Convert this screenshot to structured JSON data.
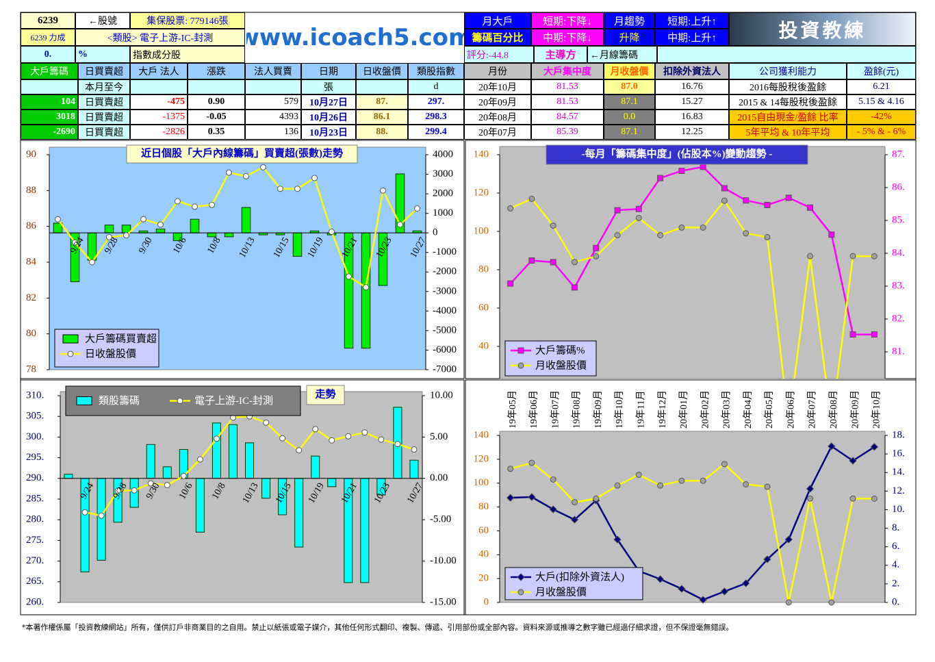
{
  "header": {
    "stock_code": "6239",
    "code_label": "←股號",
    "custody": "集保股票: 779146張",
    "stock_name": "6239 力成",
    "sector": "<類股> 電子上游-IC-封測",
    "pct_value": "0.",
    "pct_unit": "%",
    "index_member": "指數成分股",
    "site": "www.icoach5.com",
    "monthly_big": [
      "月大戶",
      "籌碼百分比"
    ],
    "monthly_big_trend": [
      "短期:下降↓",
      "中期:下降↓"
    ],
    "monthly_trend": [
      "月趨勢",
      "升降"
    ],
    "monthly_trend_value": [
      "短期:上升↑",
      "中期:上升↑"
    ],
    "logo": "投資教練",
    "score": "評分:-44.8",
    "leader": "主導方",
    "leader_value": "←月線籌碼"
  },
  "daily_table": {
    "header": [
      "大戶籌碼",
      "日買賣超",
      "大戶 法人",
      "漲跌",
      "法人買賣",
      "日期",
      "日收盤價",
      "類股指數"
    ],
    "rows": [
      [
        null,
        "本月至今",
        null,
        null,
        null,
        "張",
        null,
        "d"
      ],
      [
        "104",
        "日買賣超",
        "-475",
        "0.90",
        "579",
        "10月27日",
        "87.",
        "297."
      ],
      [
        "3018",
        "日買賣超",
        "-1375",
        "-0.05",
        "4393",
        "10月26日",
        "86.1",
        "298.3"
      ],
      [
        "-2690",
        "日買賣超",
        "-2826",
        "0.35",
        "136",
        "10月23日",
        "88.",
        "299.4"
      ]
    ]
  },
  "monthly_table": {
    "header": [
      "月份",
      "大戶集中度",
      "月收盤價",
      "扣除外資法人"
    ],
    "rows": [
      [
        "20年10月",
        "81.53",
        "87.0",
        "16.76"
      ],
      [
        "20年09月",
        "81.53",
        "87.1",
        "15.27"
      ],
      [
        "20年08月",
        "84.57",
        "0.0",
        "16.83"
      ],
      [
        "20年07月",
        "85.39",
        "87.1",
        "12.25"
      ]
    ]
  },
  "profit_table": {
    "header": [
      "公司獲利能力",
      "盈餘(元)"
    ],
    "rows": [
      [
        "2016每股稅後盈餘",
        "6.21"
      ],
      [
        "2015 & 14每股稅後盈餘",
        "5.15 & 4.16"
      ],
      [
        "2015自由現金/盈餘 比率",
        "-42%"
      ],
      [
        "5年平均 & 10年平均",
        "- 5% & - 6%"
      ]
    ]
  },
  "footer": "*本著作權係屬「投資教練網站」所有，僅供訂戶非商業目的之自用。禁止以紙張或電子媒介，其他任何形式翻印、複製、傳遞、引用部份或全部內容。資料來源或推導之數字雖已經過仔細求證，但不保證毫無錯誤。",
  "chart_data": [
    {
      "type": "combo",
      "title": "近日個股「大戶內線籌碼」買賣超(張數)走勢",
      "categories": [
        null,
        "9/24",
        null,
        "9/28",
        null,
        "9/30",
        null,
        "10/6",
        null,
        "10/8",
        null,
        "10/13",
        null,
        "10/15",
        null,
        "10/19",
        null,
        "10/21",
        null,
        "10/23",
        null,
        "10/27"
      ],
      "ylim": [
        78,
        90
      ],
      "yticks": [
        78,
        80,
        82,
        84,
        86,
        88,
        90
      ],
      "y2lim": [
        -7000,
        4000
      ],
      "y2ticks": [
        -7000,
        -6000,
        -5000,
        -4000,
        -3000,
        -2000,
        -1000,
        0,
        1000,
        2000,
        3000,
        4000
      ],
      "legend": "lower left",
      "series": [
        {
          "name": "大戶籌碼買賣超",
          "type": "bar",
          "axis": "y2",
          "color": "#00ee00",
          "values": [
            500,
            -2500,
            -1400,
            400,
            400,
            100,
            200,
            -400,
            700,
            -200,
            -200,
            1300,
            -100,
            -100,
            -1200,
            100,
            -100,
            -5900,
            -5900,
            -2690,
            3018,
            104
          ]
        },
        {
          "name": "日收盤股價",
          "type": "line",
          "color": "#ffff00",
          "marker": "circle",
          "marker_color": "#ffffff",
          "values": [
            86.4,
            85.1,
            84.0,
            85.4,
            85.5,
            86.4,
            86.1,
            87.4,
            87.1,
            87.2,
            89.0,
            88.8,
            89.3,
            88.1,
            88.1,
            88.7,
            85.7,
            83.2,
            82.6,
            88.0,
            86.1,
            87.0
          ]
        }
      ]
    },
    {
      "type": "combo",
      "title": "-每月「籌碼集中度」(佔股本%)變動趨勢 -",
      "ylim": [
        20,
        140
      ],
      "yticks": [
        40,
        60,
        80,
        100,
        120,
        140
      ],
      "y2lim": [
        80,
        87
      ],
      "y2ticks": [
        {
          "value": 81,
          "label": "81."
        },
        {
          "value": 82,
          "label": "82."
        },
        {
          "value": 83,
          "label": "83."
        },
        {
          "value": 84,
          "label": "84."
        },
        {
          "value": 85,
          "label": "85."
        },
        {
          "value": 86,
          "label": "86."
        },
        {
          "value": 87,
          "label": "87."
        }
      ],
      "legend": "lower left",
      "series": [
        {
          "name": "大戶籌碼%",
          "type": "line",
          "axis": "y2",
          "color": "#ff00ff",
          "marker": "square",
          "marker_color": "#ff00ff",
          "values": [
            83.08,
            83.78,
            83.73,
            82.96,
            84.16,
            85.31,
            85.35,
            86.29,
            86.51,
            86.63,
            85.98,
            85.61,
            85.47,
            85.69,
            85.39,
            84.57,
            81.53,
            81.53
          ]
        },
        {
          "name": "月收盤股價",
          "type": "line",
          "color": "#ffff00",
          "marker": "circle",
          "marker_color": "#a0a0a0",
          "values": [
            112,
            117,
            103,
            84,
            87,
            98,
            107,
            98,
            102,
            102,
            116,
            99,
            97,
            0,
            87.1,
            0,
            87.1,
            87.0
          ]
        }
      ]
    },
    {
      "type": "combo",
      "title": "走勢",
      "categories": [
        null,
        "9/24",
        null,
        "9/28",
        null,
        "9/30",
        null,
        "10/6",
        null,
        "10/8",
        null,
        "10/13",
        null,
        "10/15",
        null,
        "10/19",
        null,
        "10/21",
        null,
        "10/23",
        null,
        "10/27"
      ],
      "ylim": [
        260,
        310
      ],
      "yticks": [
        {
          "value": 260,
          "label": "260."
        },
        {
          "value": 265,
          "label": "265."
        },
        {
          "value": 270,
          "label": "270."
        },
        {
          "value": 275,
          "label": "275."
        },
        {
          "value": 280,
          "label": "280."
        },
        {
          "value": 285,
          "label": "285."
        },
        {
          "value": 290,
          "label": "290."
        },
        {
          "value": 295,
          "label": "295."
        },
        {
          "value": 300,
          "label": "300."
        },
        {
          "value": 305,
          "label": "305."
        },
        {
          "value": 310,
          "label": "310."
        }
      ],
      "y2lim": [
        -15,
        10
      ],
      "y2ticks": [
        {
          "value": -15,
          "label": "-15.00"
        },
        {
          "value": -10,
          "label": "-10.00"
        },
        {
          "value": -5,
          "label": "-5.00"
        },
        {
          "value": 0,
          "label": "0.00"
        },
        {
          "value": 5,
          "label": "5.00"
        },
        {
          "value": 10,
          "label": "10.00"
        }
      ],
      "legend": "upper left",
      "series": [
        {
          "name": "類股籌碼",
          "type": "bar",
          "axis": "y2",
          "color": "#00ffff",
          "values": [
            0.5,
            -11.3,
            -9.9,
            -5.3,
            -3.5,
            4.1,
            1.4,
            3.5,
            -6.5,
            6.7,
            6.5,
            4.3,
            -2.4,
            -4.4,
            -8.3,
            2.7,
            -1.0,
            -12.6,
            -12.6,
            -2.0,
            8.6,
            2.2
          ]
        },
        {
          "name": "電子上游-IC-封測",
          "type": "line",
          "color": "#ffff00",
          "marker": "circle",
          "marker_color": "#ffffff",
          "values": [
            null,
            281.8,
            281.0,
            287.0,
            287.1,
            288.8,
            288.4,
            290.6,
            294.6,
            299.6,
            304.7,
            305.0,
            303.5,
            299.7,
            296.8,
            301.9,
            299.2,
            300.2,
            301.1,
            299.4,
            298.3,
            297
          ]
        }
      ]
    },
    {
      "type": "combo",
      "categories": [
        "19年05月",
        "19年06月",
        "19年07月",
        "19年08月",
        "19年09月",
        "19年10月",
        "19年11月",
        "19年12月",
        "20年01月",
        "20年02月",
        "20年03月",
        "20年04月",
        "20年05月",
        "20年06月",
        "20年07月",
        "20年08月",
        "20年09月",
        "20年10月"
      ],
      "ylim": [
        0,
        140
      ],
      "yticks": [
        0,
        20,
        40,
        60,
        80,
        100,
        120,
        140
      ],
      "y2lim": [
        0,
        18
      ],
      "y2ticks": [
        {
          "value": 0,
          "label": "0."
        },
        {
          "value": 2,
          "label": "2."
        },
        {
          "value": 4,
          "label": "4."
        },
        {
          "value": 6,
          "label": "6."
        },
        {
          "value": 8,
          "label": "8."
        },
        {
          "value": 10,
          "label": "10."
        },
        {
          "value": 12,
          "label": "12."
        },
        {
          "value": 14,
          "label": "14."
        },
        {
          "value": 16,
          "label": "16."
        },
        {
          "value": 18,
          "label": "18."
        }
      ],
      "legend": "lower left",
      "series": [
        {
          "name": "大戶(扣除外資法人)",
          "type": "line",
          "axis": "y2",
          "color": "#000080",
          "marker": "diamond",
          "marker_color": "#000080",
          "values": [
            11.28,
            11.36,
            10.03,
            8.92,
            10.99,
            6.78,
            3.39,
            2.51,
            1.47,
            0.29,
            1.18,
            2.06,
            4.65,
            6.78,
            12.25,
            16.83,
            15.27,
            16.76
          ]
        },
        {
          "name": "月收盤股價",
          "type": "line",
          "color": "#ffff00",
          "marker": "circle",
          "marker_color": "#a0a0a0",
          "values": [
            112,
            117,
            103,
            84,
            87,
            98,
            107,
            98,
            102,
            102,
            116,
            99,
            97,
            0,
            87.1,
            0,
            87.1,
            87.0
          ]
        }
      ]
    }
  ]
}
